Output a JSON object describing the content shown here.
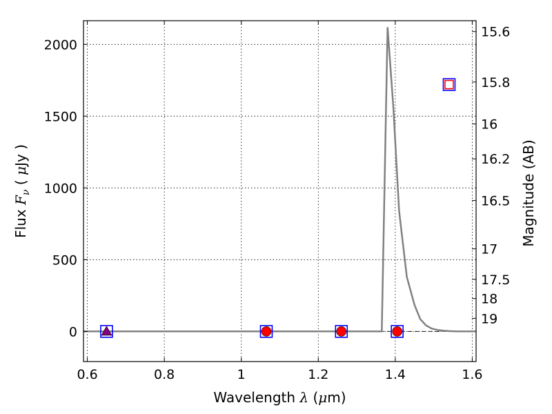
{
  "chart_data": {
    "type": "line",
    "title": "",
    "xlabel": {
      "prefix": "Wavelength",
      "symbol": "λ",
      "unit_open": "(",
      "unit_mu": "μ",
      "unit_rest": "m)"
    },
    "ylabel": {
      "prefix": "Flux",
      "symbol": "F",
      "subscript": "ν",
      "paren_open": "(",
      "unit_mu": "μ",
      "unit_rest": "Jy",
      "paren_close": ")"
    },
    "y2label": "Magnitude (AB)",
    "xlim": [
      0.59,
      1.61
    ],
    "ylim": [
      -210,
      2165
    ],
    "grid": true,
    "xticks": [
      {
        "v": 0.6,
        "label": "0.6"
      },
      {
        "v": 0.8,
        "label": "0.8"
      },
      {
        "v": 1.0,
        "label": "1"
      },
      {
        "v": 1.2,
        "label": "1.2"
      },
      {
        "v": 1.4,
        "label": "1.4"
      },
      {
        "v": 1.6,
        "label": "1.6"
      }
    ],
    "yticks": [
      {
        "v": 0,
        "label": "0"
      },
      {
        "v": 500,
        "label": "500"
      },
      {
        "v": 1000,
        "label": "1000"
      },
      {
        "v": 1500,
        "label": "1500"
      },
      {
        "v": 2000,
        "label": "2000"
      }
    ],
    "y2ticks": [
      {
        "mag": 15.6,
        "label": "15.6"
      },
      {
        "mag": 15.8,
        "label": "15.8"
      },
      {
        "mag": 16.0,
        "label": "16"
      },
      {
        "mag": 16.2,
        "label": "16.2"
      },
      {
        "mag": 16.5,
        "label": "16.5"
      },
      {
        "mag": 17.0,
        "label": "17"
      },
      {
        "mag": 17.5,
        "label": "17.5"
      },
      {
        "mag": 18.0,
        "label": "18"
      },
      {
        "mag": 19.0,
        "label": "19"
      }
    ],
    "series": [
      {
        "style": "line",
        "color": "#808080",
        "x": [
          0.59,
          1.365,
          1.38,
          1.395,
          1.41,
          1.43,
          1.45,
          1.465,
          1.48,
          1.495,
          1.51,
          1.525,
          1.54,
          1.56,
          1.58,
          1.61
        ],
        "y": [
          0,
          0,
          2120,
          1560,
          840,
          380,
          185,
          85,
          42,
          20,
          10,
          5,
          2,
          0,
          0,
          0
        ]
      },
      {
        "style": "marker-square-open",
        "color": "#0000ff",
        "x": [
          0.65,
          1.065,
          1.26,
          1.405,
          1.54
        ],
        "y": [
          0,
          0,
          0,
          0,
          1720
        ]
      },
      {
        "style": "marker-circle",
        "color": "#ff0000",
        "x": [
          1.065,
          1.26,
          1.405
        ],
        "y": [
          0,
          0,
          0
        ]
      },
      {
        "style": "marker-triangle",
        "color": "#800080",
        "x": [
          0.65
        ],
        "y": [
          0
        ]
      },
      {
        "style": "marker-square-open",
        "color": "#ff0000",
        "x": [
          1.54
        ],
        "y": [
          1720
        ]
      }
    ]
  }
}
